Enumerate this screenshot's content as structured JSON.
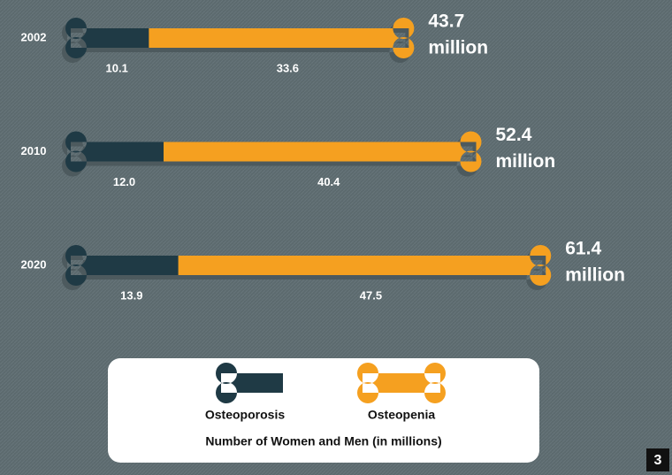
{
  "chart_data": {
    "type": "bone-bar",
    "categories": [
      "2002",
      "2010",
      "2020"
    ],
    "series": [
      {
        "name": "Osteoporosis",
        "color": "#1f3a45",
        "values": [
          10.1,
          12.0,
          13.9
        ],
        "value_labels": [
          "10.1",
          "12.0",
          "13.9"
        ]
      },
      {
        "name": "Osteopenia",
        "color": "#f5a020",
        "values": [
          33.6,
          40.4,
          47.5
        ]
      }
    ],
    "totals": [
      43.7,
      52.4,
      61.4
    ],
    "total_labels": [
      [
        "43.7",
        "million"
      ],
      [
        "52.4",
        "million"
      ],
      [
        "61.4",
        "million"
      ]
    ],
    "legend_title": "Number of Women and Men (in millions)",
    "figure_number": "3"
  }
}
